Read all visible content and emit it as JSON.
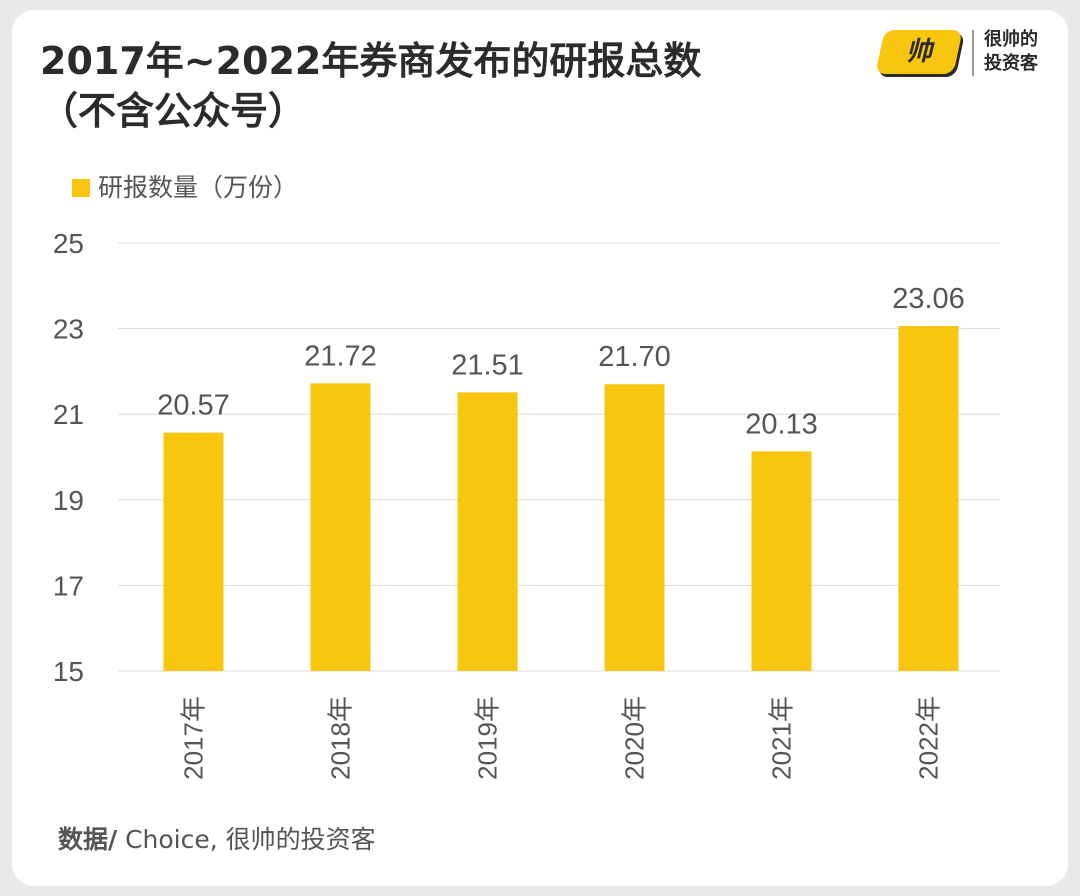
{
  "title_line1": "2017年~2022年券商发布的研报总数",
  "title_line2": "（不含公众号）",
  "logo": {
    "mark": "帅",
    "text_line1": "很帅的",
    "text_line2": "投资客"
  },
  "source": {
    "label": "数据/",
    "text": " Choice, 很帅的投资客"
  },
  "colors": {
    "bar": "#f9c60f",
    "grid": "#dcdcdc",
    "text": "#555555"
  },
  "chart_data": {
    "type": "bar",
    "categories": [
      "2017年",
      "2018年",
      "2019年",
      "2020年",
      "2021年",
      "2022年"
    ],
    "series": [
      {
        "name": "研报数量（万份）",
        "values": [
          20.57,
          21.72,
          21.51,
          21.7,
          20.13,
          23.06
        ]
      }
    ],
    "data_labels": [
      "20.57",
      "21.72",
      "21.51",
      "21.70",
      "20.13",
      "23.06"
    ],
    "ylim": [
      15,
      25
    ],
    "yticks": [
      15,
      17,
      19,
      21,
      23,
      25
    ],
    "grid": true,
    "legend_position": "top-left"
  }
}
